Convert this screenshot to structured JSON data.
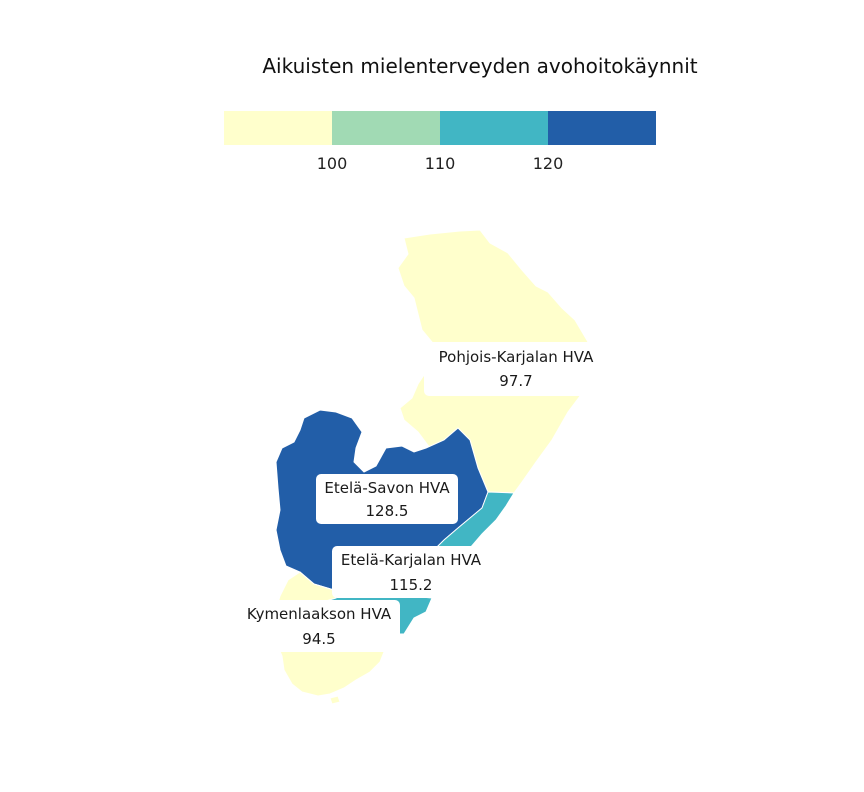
{
  "title": "Aikuisten mielenterveyden avohoitokäynnit",
  "legend": {
    "colors": [
      "#ffffcc",
      "#a1dab4",
      "#41b6c4",
      "#225ea8"
    ],
    "ticks": [
      "100",
      "110",
      "120"
    ]
  },
  "regions": [
    {
      "name": "Pohjois-Karjalan HVA",
      "value": "97.7",
      "color": "#ffffcc"
    },
    {
      "name": "Etelä-Savon HVA",
      "value": "128.5",
      "color": "#225ea8"
    },
    {
      "name": "Etelä-Karjalan HVA",
      "value": "115.2",
      "color": "#41b6c4"
    },
    {
      "name": "Kymenlaakson HVA",
      "value": "94.5",
      "color": "#ffffcc"
    }
  ]
}
